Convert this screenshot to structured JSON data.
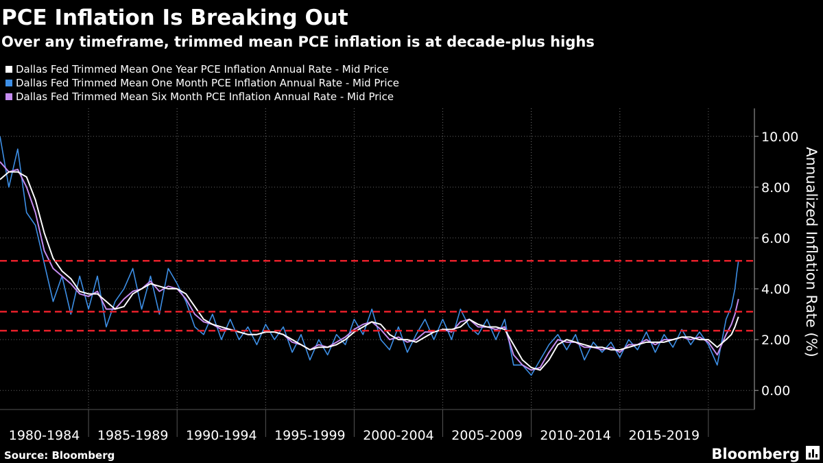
{
  "chart_data": {
    "type": "line",
    "title": "PCE Inflation Is Breaking Out",
    "subtitle": "Over any timeframe, trimmed mean PCE inflation is at decade-plus highs",
    "y_label": "Annualized Inflation Rate (%)",
    "source": "Source: Bloomberg",
    "brand": "Bloomberg",
    "xlim": [
      1980,
      2022.6
    ],
    "ylim": [
      -0.75,
      11.1
    ],
    "yticks": [
      {
        "value": 0,
        "label": "0.00"
      },
      {
        "value": 2,
        "label": "2.00"
      },
      {
        "value": 4,
        "label": "4.00"
      },
      {
        "value": 6,
        "label": "6.00"
      },
      {
        "value": 8,
        "label": "8.00"
      },
      {
        "value": 10,
        "label": "10.00"
      }
    ],
    "x_bands": [
      {
        "start": 1980,
        "end": 1985,
        "label": "1980-1984"
      },
      {
        "start": 1985,
        "end": 1990,
        "label": "1985-1989"
      },
      {
        "start": 1990,
        "end": 1995,
        "label": "1990-1994"
      },
      {
        "start": 1995,
        "end": 2000,
        "label": "1995-1999"
      },
      {
        "start": 2000,
        "end": 2005,
        "label": "2000-2004"
      },
      {
        "start": 2005,
        "end": 2010,
        "label": "2005-2009"
      },
      {
        "start": 2010,
        "end": 2015,
        "label": "2010-2014"
      },
      {
        "start": 2015,
        "end": 2020,
        "label": "2015-2019"
      }
    ],
    "grid": true,
    "hlines": [
      {
        "value": 5.1,
        "color": "#e8202a"
      },
      {
        "value": 3.1,
        "color": "#e8202a"
      },
      {
        "value": 2.35,
        "color": "#e8202a"
      }
    ],
    "x": [
      1980,
      1980.5,
      1981,
      1981.5,
      1982,
      1982.5,
      1983,
      1983.5,
      1984,
      1984.5,
      1985,
      1985.5,
      1986,
      1986.5,
      1987,
      1987.5,
      1988,
      1988.5,
      1989,
      1989.5,
      1990,
      1990.5,
      1991,
      1991.5,
      1992,
      1992.5,
      1993,
      1993.5,
      1994,
      1994.5,
      1995,
      1995.5,
      1996,
      1996.5,
      1997,
      1997.5,
      1998,
      1998.5,
      1999,
      1999.5,
      2000,
      2000.5,
      2001,
      2001.5,
      2002,
      2002.5,
      2003,
      2003.5,
      2004,
      2004.5,
      2005,
      2005.5,
      2006,
      2006.5,
      2007,
      2007.5,
      2008,
      2008.5,
      2009,
      2009.5,
      2010,
      2010.5,
      2011,
      2011.5,
      2012,
      2012.5,
      2013,
      2013.5,
      2014,
      2014.5,
      2015,
      2015.5,
      2016,
      2016.5,
      2017,
      2017.5,
      2018,
      2018.5,
      2019,
      2019.5,
      2020,
      2020.5,
      2021,
      2021.3,
      2021.5,
      2021.6,
      2021.7
    ],
    "series": [
      {
        "name": "Dallas Fed Trimmed Mean One Month PCE Inflation Annual Rate - Mid Price",
        "color": "#3d8fe6",
        "values": [
          10.0,
          8.0,
          9.5,
          7.0,
          6.5,
          5.0,
          3.5,
          4.5,
          3.0,
          4.5,
          3.2,
          4.5,
          2.5,
          3.5,
          4.0,
          4.8,
          3.2,
          4.5,
          3.0,
          4.8,
          4.2,
          3.5,
          2.5,
          2.2,
          3.0,
          2.0,
          2.8,
          2.0,
          2.5,
          1.8,
          2.6,
          2.0,
          2.5,
          1.5,
          2.2,
          1.2,
          2.0,
          1.4,
          2.2,
          1.8,
          2.8,
          2.2,
          3.2,
          2.0,
          1.6,
          2.5,
          1.5,
          2.2,
          2.8,
          2.0,
          2.8,
          2.0,
          3.2,
          2.5,
          2.2,
          2.8,
          2.0,
          2.8,
          1.0,
          1.0,
          0.6,
          1.2,
          1.8,
          2.2,
          1.6,
          2.2,
          1.2,
          1.9,
          1.5,
          1.9,
          1.3,
          2.0,
          1.6,
          2.3,
          1.5,
          2.2,
          1.7,
          2.4,
          1.8,
          2.3,
          1.8,
          1.0,
          2.8,
          3.3,
          4.0,
          4.6,
          5.1
        ]
      },
      {
        "name": "Dallas Fed Trimmed Mean Six Month PCE Inflation Annual Rate - Mid Price",
        "color": "#c58cf0",
        "values": [
          9.0,
          8.6,
          8.7,
          8.0,
          7.0,
          5.5,
          4.8,
          4.5,
          4.2,
          3.8,
          3.7,
          3.9,
          3.2,
          3.2,
          3.6,
          3.9,
          4.0,
          4.3,
          3.9,
          4.1,
          4.0,
          3.6,
          3.0,
          2.7,
          2.6,
          2.4,
          2.4,
          2.3,
          2.2,
          2.2,
          2.3,
          2.3,
          2.2,
          1.9,
          1.8,
          1.6,
          1.8,
          1.7,
          1.9,
          2.1,
          2.4,
          2.6,
          2.7,
          2.4,
          2.0,
          2.1,
          1.9,
          2.0,
          2.3,
          2.3,
          2.4,
          2.3,
          2.7,
          2.8,
          2.5,
          2.5,
          2.4,
          2.5,
          1.4,
          1.0,
          0.8,
          0.9,
          1.5,
          2.0,
          1.9,
          1.9,
          1.7,
          1.7,
          1.6,
          1.7,
          1.5,
          1.8,
          1.8,
          2.0,
          1.8,
          2.0,
          2.0,
          2.1,
          2.0,
          2.1,
          1.9,
          1.4,
          2.2,
          2.6,
          3.0,
          3.3,
          3.6
        ]
      },
      {
        "name": "Dallas Fed Trimmed Mean One Year PCE Inflation Annual Rate - Mid Price",
        "color": "#ffffff",
        "values": [
          8.3,
          8.6,
          8.6,
          8.4,
          7.5,
          6.2,
          5.2,
          4.7,
          4.4,
          3.9,
          3.8,
          3.8,
          3.5,
          3.2,
          3.3,
          3.8,
          4.0,
          4.2,
          4.1,
          4.0,
          4.0,
          3.8,
          3.3,
          2.8,
          2.6,
          2.5,
          2.4,
          2.3,
          2.2,
          2.2,
          2.3,
          2.3,
          2.2,
          2.0,
          1.8,
          1.6,
          1.7,
          1.7,
          1.8,
          2.0,
          2.3,
          2.5,
          2.7,
          2.6,
          2.2,
          2.0,
          2.0,
          1.9,
          2.1,
          2.3,
          2.4,
          2.4,
          2.5,
          2.8,
          2.6,
          2.5,
          2.5,
          2.4,
          1.8,
          1.2,
          0.9,
          0.8,
          1.2,
          1.8,
          2.0,
          1.9,
          1.8,
          1.7,
          1.7,
          1.6,
          1.6,
          1.7,
          1.8,
          1.9,
          1.9,
          1.9,
          2.0,
          2.1,
          2.1,
          2.0,
          2.0,
          1.7,
          2.0,
          2.2,
          2.5,
          2.7,
          2.9
        ]
      }
    ],
    "legend_order": [
      2,
      0,
      1
    ]
  }
}
